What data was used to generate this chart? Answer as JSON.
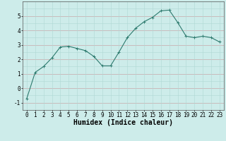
{
  "x": [
    0,
    1,
    2,
    3,
    4,
    5,
    6,
    7,
    8,
    9,
    10,
    11,
    12,
    13,
    14,
    15,
    16,
    17,
    18,
    19,
    20,
    21,
    22,
    23
  ],
  "y": [
    -0.7,
    1.1,
    1.5,
    2.1,
    2.85,
    2.9,
    2.75,
    2.6,
    2.2,
    1.55,
    1.55,
    2.5,
    3.5,
    4.15,
    4.6,
    4.9,
    5.35,
    5.4,
    4.55,
    3.6,
    3.5,
    3.6,
    3.5,
    3.2
  ],
  "xlabel": "Humidex (Indice chaleur)",
  "xlim": [
    -0.5,
    23.5
  ],
  "ylim": [
    -1.5,
    6.0
  ],
  "yticks": [
    -1,
    0,
    1,
    2,
    3,
    4,
    5
  ],
  "xticks": [
    0,
    1,
    2,
    3,
    4,
    5,
    6,
    7,
    8,
    9,
    10,
    11,
    12,
    13,
    14,
    15,
    16,
    17,
    18,
    19,
    20,
    21,
    22,
    23
  ],
  "line_color": "#2d7a6e",
  "marker": "+",
  "marker_size": 3,
  "bg_color": "#cdecea",
  "grid_minor_color": "#b0d8d4",
  "grid_major_color": "#c8a8a8",
  "tick_fontsize": 5.5,
  "xlabel_fontsize": 7.0
}
